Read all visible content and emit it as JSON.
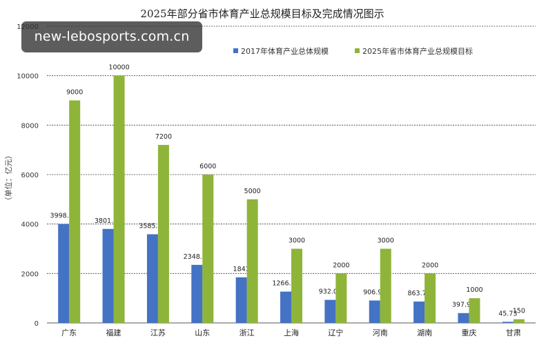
{
  "watermark": "new-lebosports.com.cn",
  "chart_data": {
    "type": "bar",
    "title": "2025年部分省市体育产业总规模目标及完成情况图示",
    "ylabel": "（单位：亿元）",
    "xlabel": "",
    "ylim": [
      0,
      12000
    ],
    "yticks": [
      0,
      2000,
      4000,
      6000,
      8000,
      10000,
      12000
    ],
    "grid": true,
    "legend_position": "top-right",
    "categories": [
      "广东",
      "福建",
      "江苏",
      "山东",
      "浙江",
      "上海",
      "辽宁",
      "河南",
      "湖南",
      "重庆",
      "甘肃"
    ],
    "series": [
      {
        "name": "2017年体育产业总体规模",
        "color": "#4472c4",
        "values": [
          3998.03,
          3801.41,
          3585.64,
          2348.01,
          1843,
          1266.93,
          932.09,
          906.99,
          863.74,
          397.91,
          45.73
        ],
        "labels": [
          "3998.03",
          "3801.41",
          "3585.64",
          "2348.01",
          "1843",
          "1266.93",
          "932.09",
          "906.99",
          "863.74",
          "397.91",
          "45.73"
        ]
      },
      {
        "name": "2025年省市体育产业总规模目标",
        "color": "#8fb43a",
        "values": [
          9000,
          10000,
          7200,
          6000,
          5000,
          3000,
          2000,
          3000,
          2000,
          1000,
          150
        ],
        "labels": [
          "9000",
          "10000",
          "7200",
          "6000",
          "5000",
          "3000",
          "2000",
          "3000",
          "2000",
          "1000",
          "150"
        ]
      }
    ]
  }
}
